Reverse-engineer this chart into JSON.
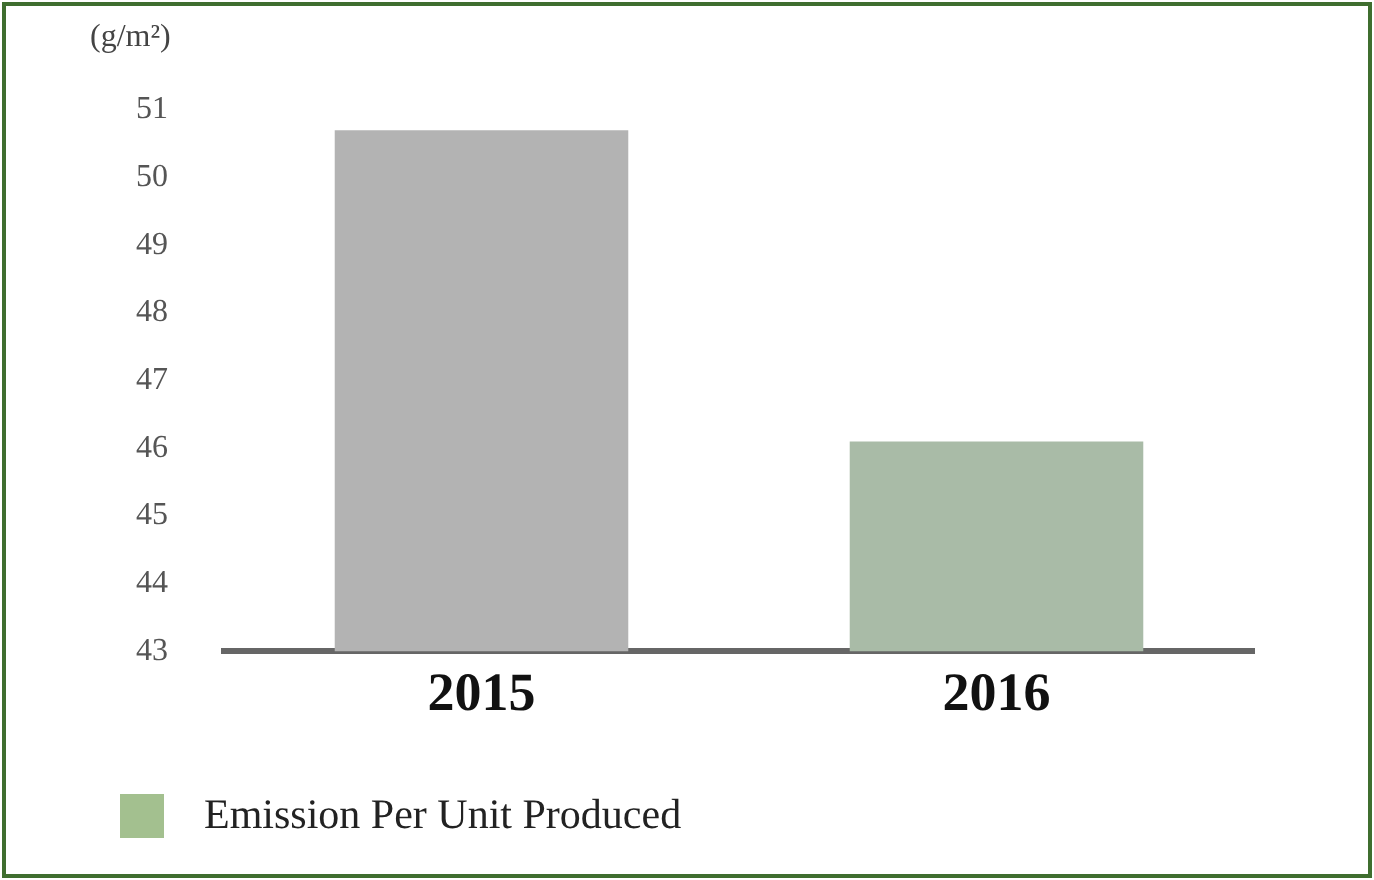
{
  "chart_data": {
    "type": "bar",
    "ylabel": "(g/m²)",
    "categories": [
      "2015",
      "2016"
    ],
    "series": [
      {
        "name": "Emission Per Unit Produced",
        "color": "#a3c08f",
        "colors": [
          "#b3b3b3",
          "#a9bba7"
        ],
        "values": [
          50.7,
          46.1
        ]
      }
    ],
    "ylim": [
      43,
      51
    ],
    "yticks": [
      43,
      44,
      45,
      46,
      47,
      48,
      49,
      50,
      51
    ],
    "grid": false,
    "legend": "bottom"
  }
}
